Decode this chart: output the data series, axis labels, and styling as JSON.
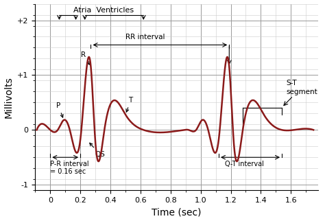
{
  "title": "",
  "xlabel": "Time (sec)",
  "ylabel": "Millivolts",
  "xlim": [
    -0.1,
    1.78
  ],
  "ylim": [
    -1.1,
    2.3
  ],
  "yticks": [
    -1,
    0,
    1,
    2
  ],
  "ytick_labels": [
    "-1",
    "0",
    "+1",
    "+2"
  ],
  "xticks": [
    0,
    0.2,
    0.4,
    0.6,
    0.8,
    1.0,
    1.2,
    1.4,
    1.6
  ],
  "line_color": "#8B1A1A",
  "line_width": 1.8,
  "bg_color": "#ffffff",
  "major_grid_color": "#999999",
  "minor_grid_color": "#cccccc",
  "beat_period": 0.92,
  "keypoints_beat1": [
    [
      -0.09,
      0
    ],
    [
      0.0,
      0
    ],
    [
      0.05,
      0
    ],
    [
      0.09,
      0.18
    ],
    [
      0.13,
      0.0
    ],
    [
      0.2,
      -0.18
    ],
    [
      0.27,
      1.15
    ],
    [
      0.3,
      -0.22
    ],
    [
      0.36,
      0.0
    ],
    [
      0.5,
      0.28
    ],
    [
      0.62,
      0.0
    ],
    [
      0.89,
      0.0
    ]
  ],
  "keypoints_beat2": [
    [
      0.92,
      0.0
    ],
    [
      0.97,
      0.0
    ],
    [
      1.01,
      0.18
    ],
    [
      1.05,
      0.0
    ],
    [
      1.12,
      -0.18
    ],
    [
      1.19,
      1.15
    ],
    [
      1.22,
      -0.22
    ],
    [
      1.28,
      0.0
    ],
    [
      1.42,
      0.28
    ],
    [
      1.54,
      0.0
    ],
    [
      1.75,
      0.0
    ]
  ],
  "ann_fontsize": 7.5,
  "ann_small_fontsize": 7.0
}
